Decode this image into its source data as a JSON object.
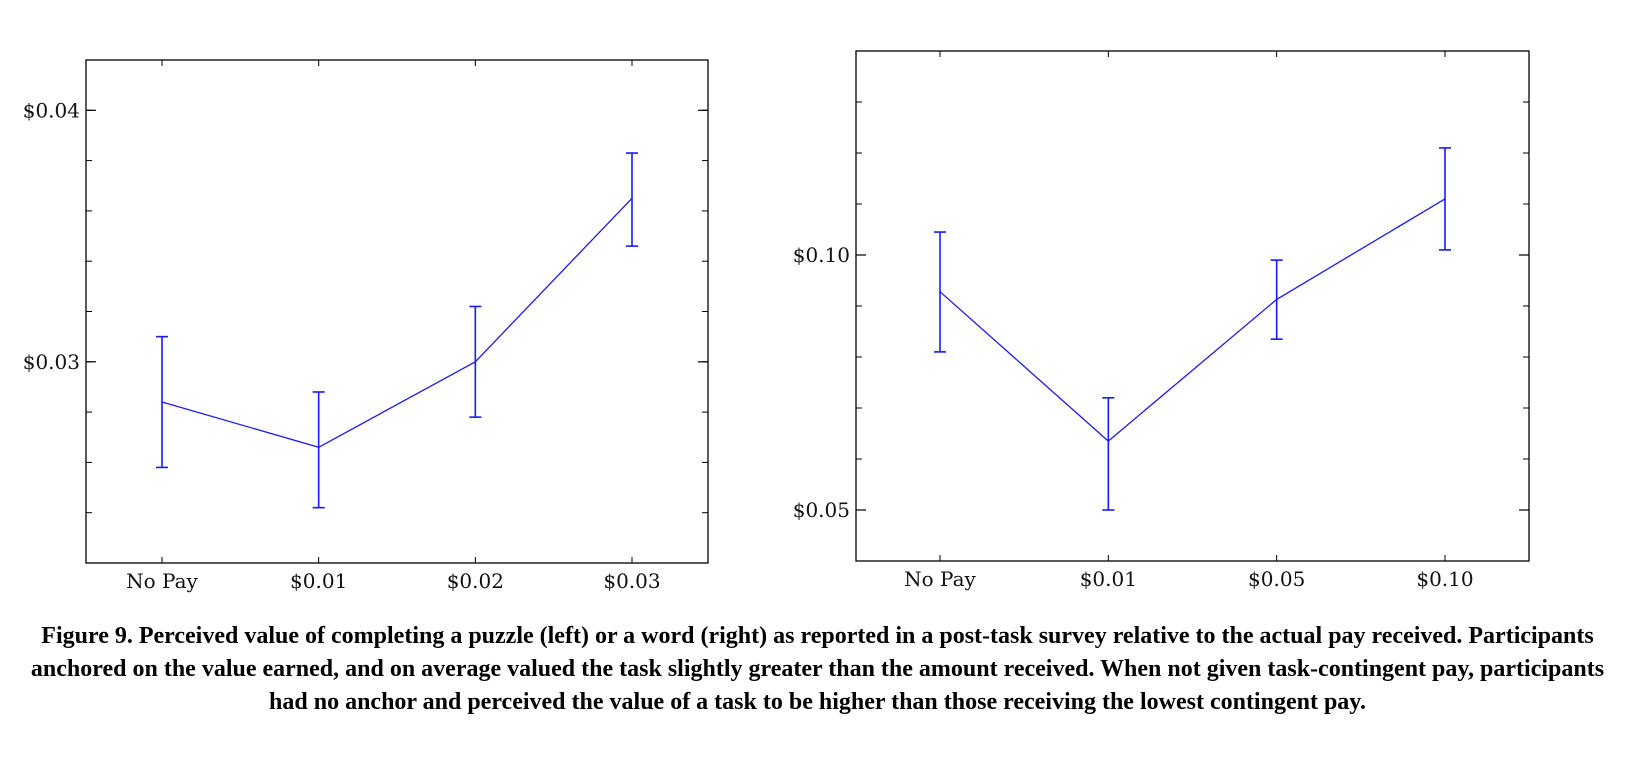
{
  "chart_data": [
    {
      "type": "line",
      "categories": [
        "No Pay",
        "$0.01",
        "$0.02",
        "$0.03"
      ],
      "series": [
        {
          "values": [
            0.0284,
            0.0266,
            0.03,
            0.0365
          ],
          "error_low": [
            0.0258,
            0.0242,
            0.0278,
            0.0346
          ],
          "error_high": [
            0.031,
            0.0288,
            0.0322,
            0.0383
          ]
        }
      ],
      "ylim": [
        0.022,
        0.042
      ],
      "y_major_ticks": [
        0.03,
        0.04
      ],
      "y_tick_labels": [
        "$0.03",
        "$0.04"
      ],
      "y_minor_step": 0.002,
      "grid": false,
      "line_color": "#1a1aff"
    },
    {
      "type": "line",
      "categories": [
        "No Pay",
        "$0.01",
        "$0.05",
        "$0.10"
      ],
      "series": [
        {
          "values": [
            0.0928,
            0.0635,
            0.0913,
            0.111
          ],
          "error_low": [
            0.081,
            0.05,
            0.0835,
            0.101
          ],
          "error_high": [
            0.1045,
            0.072,
            0.099,
            0.121
          ]
        }
      ],
      "ylim": [
        0.04,
        0.14
      ],
      "y_major_ticks": [
        0.05,
        0.1
      ],
      "y_tick_labels": [
        "$0.05",
        "$0.10"
      ],
      "y_minor_step": 0.01,
      "grid": false,
      "line_color": "#1a1aff"
    }
  ],
  "caption": "Figure 9. Perceived value of completing a puzzle (left) or a word (right) as reported in a post-task survey relative to the actual pay received.  Participants anchored on the value earned, and on average valued the task slightly greater than the amount received. When not given task-contingent pay, participants had no anchor and perceived the value of a task to be higher than those receiving the lowest contingent pay."
}
